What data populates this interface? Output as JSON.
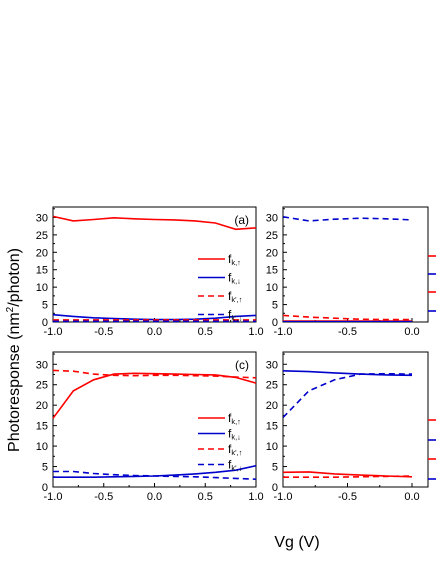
{
  "figure": {
    "ylabel_main": "Photoresponse (nm",
    "ylabel_sup": "2",
    "ylabel_tail": "/photon)",
    "xlabel": "Vg (V)"
  },
  "chart_data": [
    {
      "type": "line",
      "panel": "(a)",
      "x": [
        -1.0,
        -0.8,
        -0.6,
        -0.4,
        -0.2,
        0.0,
        0.2,
        0.4,
        0.6,
        0.8,
        1.0
      ],
      "xlim": [
        -1.0,
        1.0
      ],
      "ylim": [
        0,
        33
      ],
      "xticks": [
        "-1.0",
        "-0.5",
        "0.0",
        "0.5",
        "1.0"
      ],
      "yticks": [
        "0",
        "5",
        "10",
        "15",
        "20",
        "25",
        "30"
      ],
      "legend_position": "right",
      "series": [
        {
          "name": "f k,↑",
          "main": "f",
          "sub": "k,↑",
          "color": "#ff0000",
          "dash": "solid",
          "values": [
            30.3,
            29.0,
            29.4,
            29.9,
            29.6,
            29.4,
            29.3,
            29.0,
            28.4,
            26.6,
            27.0
          ]
        },
        {
          "name": "f k,↓",
          "main": "f",
          "sub": "k,↓",
          "color": "#0000cc",
          "dash": "solid",
          "values": [
            2.1,
            1.6,
            1.2,
            1.0,
            0.8,
            0.7,
            0.7,
            0.8,
            1.1,
            1.6,
            1.9
          ]
        },
        {
          "name": "f k',↑",
          "main": "f",
          "sub": "k',↑",
          "color": "#ff0000",
          "dash": "dashed",
          "values": [
            0.6,
            0.6,
            0.6,
            0.6,
            0.6,
            0.6,
            0.6,
            0.6,
            0.6,
            0.6,
            0.6
          ]
        },
        {
          "name": "f k',↓",
          "main": "f",
          "sub": "k',↓",
          "color": "#0000cc",
          "dash": "dashed",
          "values": [
            0.2,
            0.2,
            0.2,
            0.2,
            0.2,
            0.2,
            0.2,
            0.2,
            0.2,
            0.2,
            0.2
          ]
        }
      ]
    },
    {
      "type": "line",
      "panel": "",
      "x": [
        -1.0,
        -0.8,
        -0.6,
        -0.4,
        -0.2,
        0.0
      ],
      "xlim": [
        -1.0,
        0.0
      ],
      "ylim": [
        0,
        33
      ],
      "xticks": [
        "-1.0",
        "-0.5",
        "0.0"
      ],
      "yticks": [
        "0",
        "5",
        "10",
        "15",
        "20",
        "25",
        "30"
      ],
      "series": [
        {
          "color": "#0000cc",
          "dash": "dashed",
          "values": [
            30.2,
            29.0,
            29.5,
            29.8,
            29.6,
            29.3
          ]
        },
        {
          "color": "#ff0000",
          "dash": "dashed",
          "values": [
            1.9,
            1.4,
            1.1,
            0.8,
            0.7,
            0.7
          ]
        },
        {
          "color": "#ff0000",
          "dash": "solid",
          "values": [
            0.3,
            0.3,
            0.3,
            0.3,
            0.3,
            0.3
          ]
        },
        {
          "color": "#0000cc",
          "dash": "solid",
          "values": [
            0.1,
            0.1,
            0.1,
            0.1,
            0.1,
            0.1
          ]
        }
      ]
    },
    {
      "type": "line",
      "panel": "(c)",
      "x": [
        -1.0,
        -0.8,
        -0.6,
        -0.4,
        -0.2,
        0.0,
        0.2,
        0.4,
        0.6,
        0.8,
        1.0
      ],
      "xlim": [
        -1.0,
        1.0
      ],
      "ylim": [
        0,
        33
      ],
      "xticks": [
        "-1.0",
        "-0.5",
        "0.0",
        "0.5",
        "1.0"
      ],
      "yticks": [
        "0",
        "5",
        "10",
        "15",
        "20",
        "25",
        "30"
      ],
      "legend_position": "right",
      "series": [
        {
          "name": "f k,↑",
          "main": "f",
          "sub": "k,↑",
          "color": "#ff0000",
          "dash": "solid",
          "values": [
            16.8,
            23.5,
            26.2,
            27.6,
            27.8,
            27.7,
            27.6,
            27.5,
            27.4,
            26.8,
            25.4
          ]
        },
        {
          "name": "f k,↓",
          "main": "f",
          "sub": "k,↓",
          "color": "#0000cc",
          "dash": "solid",
          "values": [
            2.4,
            2.4,
            2.4,
            2.5,
            2.6,
            2.7,
            2.9,
            3.2,
            3.6,
            4.1,
            5.2
          ]
        },
        {
          "name": "f k',↑",
          "main": "f",
          "sub": "k',↑",
          "color": "#ff0000",
          "dash": "dashed",
          "values": [
            28.5,
            28.3,
            27.6,
            27.3,
            27.2,
            27.3,
            27.3,
            27.2,
            27.1,
            26.9,
            26.7
          ]
        },
        {
          "name": "f k',↓",
          "main": "f",
          "sub": "k',↓",
          "color": "#0000cc",
          "dash": "dashed",
          "values": [
            3.8,
            3.8,
            3.3,
            3.0,
            2.8,
            2.7,
            2.6,
            2.5,
            2.3,
            2.1,
            1.9
          ]
        }
      ]
    },
    {
      "type": "line",
      "panel": "",
      "x": [
        -1.0,
        -0.8,
        -0.6,
        -0.4,
        -0.2,
        0.0
      ],
      "xlim": [
        -1.0,
        0.0
      ],
      "ylim": [
        0,
        33
      ],
      "xticks": [
        "-1.0",
        "-0.5",
        "0.0"
      ],
      "yticks": [
        "0",
        "5",
        "10",
        "15",
        "20",
        "25",
        "30"
      ],
      "series": [
        {
          "color": "#0000cc",
          "dash": "solid",
          "values": [
            28.4,
            28.2,
            27.9,
            27.6,
            27.4,
            27.3
          ]
        },
        {
          "color": "#0000cc",
          "dash": "dashed",
          "values": [
            17.0,
            23.5,
            26.2,
            27.6,
            27.7,
            27.6
          ]
        },
        {
          "color": "#ff0000",
          "dash": "solid",
          "values": [
            3.6,
            3.7,
            3.2,
            2.9,
            2.7,
            2.5
          ]
        },
        {
          "color": "#ff0000",
          "dash": "dashed",
          "values": [
            2.4,
            2.4,
            2.4,
            2.5,
            2.6,
            2.7
          ]
        }
      ]
    }
  ]
}
